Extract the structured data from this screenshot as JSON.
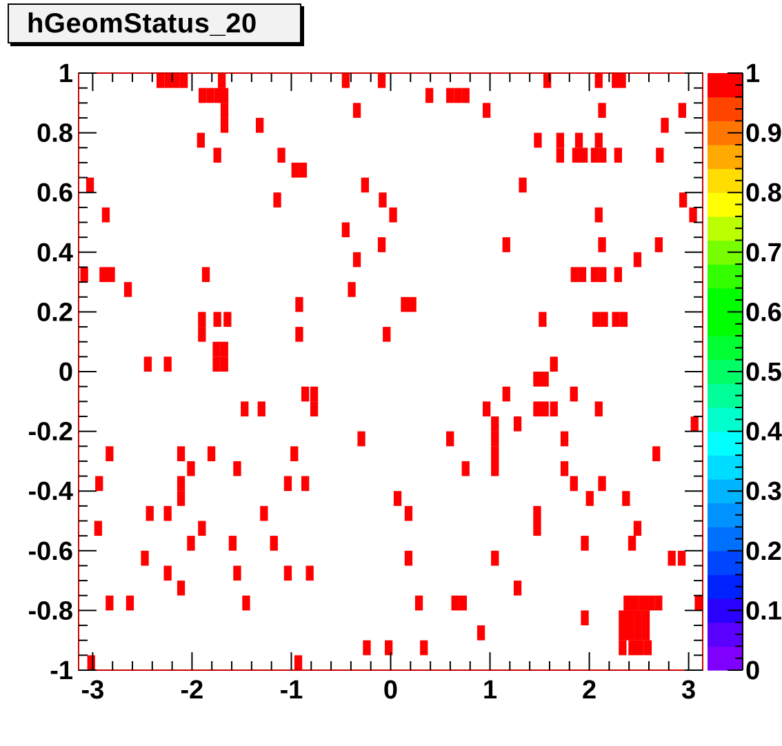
{
  "title": "hGeomStatus_20",
  "chart_data": {
    "type": "heatmap",
    "title": "hGeomStatus_20",
    "xlabel": "",
    "ylabel": "",
    "xlim": [
      -3.1416,
      3.1416
    ],
    "ylim": [
      -1,
      1
    ],
    "zlim": [
      0,
      1
    ],
    "bin_width": [
      0.0785,
      0.05
    ],
    "grid": false,
    "x_tick_labels": [
      "-3",
      "-2",
      "-1",
      "0",
      "1",
      "2",
      "3"
    ],
    "x_tick_values": [
      -3,
      -2,
      -1,
      0,
      1,
      2,
      3
    ],
    "y_tick_labels": [
      "-1",
      "-0.8",
      "-0.6",
      "-0.4",
      "-0.2",
      "0",
      "0.2",
      "0.4",
      "0.6",
      "0.8",
      "1"
    ],
    "y_tick_values": [
      -1,
      -0.8,
      -0.6,
      -0.4,
      -0.2,
      0,
      0.2,
      0.4,
      0.6,
      0.8,
      1
    ],
    "colorbar_tick_labels": [
      "0",
      "0.1",
      "0.2",
      "0.3",
      "0.4",
      "0.5",
      "0.6",
      "0.7",
      "0.8",
      "0.9",
      "1"
    ],
    "colorbar_tick_values": [
      0,
      0.1,
      0.2,
      0.3,
      0.4,
      0.5,
      0.6,
      0.7,
      0.8,
      0.9,
      1
    ],
    "palette": [
      "#7f00ff",
      "#5a00ff",
      "#2a00ff",
      "#0022ff",
      "#0046ff",
      "#0070ff",
      "#0092ff",
      "#00b4ff",
      "#00dcff",
      "#00ffff",
      "#00ffcc",
      "#00ff99",
      "#00ff66",
      "#00ff33",
      "#00ff00",
      "#00ff00",
      "#33ff00",
      "#77ff00",
      "#bbff00",
      "#ffff00",
      "#ffdd00",
      "#ffaa00",
      "#ff7700",
      "#ff4400",
      "#ff0000"
    ],
    "cell_color": "#ff0000",
    "frame_color": "#cc0000",
    "cells": [
      [
        -2.318,
        0.975
      ],
      [
        -2.239,
        0.975
      ],
      [
        -2.161,
        0.975
      ],
      [
        -2.082,
        0.975
      ],
      [
        -1.7,
        0.975
      ],
      [
        -0.452,
        0.975
      ],
      [
        -0.09,
        0.975
      ],
      [
        1.577,
        0.975
      ],
      [
        2.095,
        0.975
      ],
      [
        2.265,
        0.975
      ],
      [
        2.33,
        0.975
      ],
      [
        -1.894,
        0.925
      ],
      [
        -1.816,
        0.925
      ],
      [
        -1.737,
        0.925
      ],
      [
        -1.673,
        0.925
      ],
      [
        0.39,
        0.925
      ],
      [
        0.598,
        0.925
      ],
      [
        0.677,
        0.925
      ],
      [
        0.755,
        0.925
      ],
      [
        -1.673,
        0.875
      ],
      [
        -0.34,
        0.875
      ],
      [
        0.966,
        0.875
      ],
      [
        2.128,
        0.875
      ],
      [
        2.936,
        0.875
      ],
      [
        -1.673,
        0.825
      ],
      [
        -1.318,
        0.825
      ],
      [
        2.76,
        0.825
      ],
      [
        -1.91,
        0.775
      ],
      [
        1.482,
        0.775
      ],
      [
        1.707,
        0.775
      ],
      [
        1.896,
        0.775
      ],
      [
        2.095,
        0.775
      ],
      [
        -1.745,
        0.725
      ],
      [
        -1.1,
        0.725
      ],
      [
        1.707,
        0.725
      ],
      [
        1.867,
        0.725
      ],
      [
        1.945,
        0.725
      ],
      [
        2.055,
        0.725
      ],
      [
        2.133,
        0.725
      ],
      [
        2.29,
        0.725
      ],
      [
        2.71,
        0.725
      ],
      [
        -0.96,
        0.675
      ],
      [
        -0.882,
        0.675
      ],
      [
        -3.027,
        0.625
      ],
      [
        -0.258,
        0.625
      ],
      [
        1.33,
        0.625
      ],
      [
        -1.142,
        0.575
      ],
      [
        -0.08,
        0.575
      ],
      [
        2.945,
        0.575
      ],
      [
        -2.868,
        0.525
      ],
      [
        0.025,
        0.525
      ],
      [
        2.095,
        0.525
      ],
      [
        3.045,
        0.525
      ],
      [
        -0.452,
        0.475
      ],
      [
        -0.09,
        0.425
      ],
      [
        1.165,
        0.425
      ],
      [
        2.128,
        0.425
      ],
      [
        2.7,
        0.425
      ],
      [
        -0.34,
        0.375
      ],
      [
        2.485,
        0.375
      ],
      [
        -3.085,
        0.325
      ],
      [
        -2.893,
        0.325
      ],
      [
        -2.815,
        0.325
      ],
      [
        -1.86,
        0.325
      ],
      [
        1.852,
        0.325
      ],
      [
        1.93,
        0.325
      ],
      [
        2.055,
        0.325
      ],
      [
        2.133,
        0.325
      ],
      [
        2.29,
        0.325
      ],
      [
        -2.645,
        0.275
      ],
      [
        -0.392,
        0.275
      ],
      [
        -0.92,
        0.225
      ],
      [
        0.142,
        0.225
      ],
      [
        0.22,
        0.225
      ],
      [
        -1.9,
        0.175
      ],
      [
        -1.745,
        0.175
      ],
      [
        -1.643,
        0.175
      ],
      [
        1.53,
        0.175
      ],
      [
        2.071,
        0.175
      ],
      [
        2.149,
        0.175
      ],
      [
        2.268,
        0.175
      ],
      [
        2.346,
        0.175
      ],
      [
        -1.9,
        0.125
      ],
      [
        -0.92,
        0.125
      ],
      [
        -0.04,
        0.125
      ],
      [
        -1.753,
        0.075
      ],
      [
        -1.675,
        0.075
      ],
      [
        -2.445,
        0.025
      ],
      [
        -2.245,
        0.025
      ],
      [
        -1.753,
        0.025
      ],
      [
        -1.675,
        0.025
      ],
      [
        1.644,
        0.025
      ],
      [
        1.475,
        -0.025
      ],
      [
        1.553,
        -0.025
      ],
      [
        -0.86,
        -0.075
      ],
      [
        -0.77,
        -0.075
      ],
      [
        1.165,
        -0.075
      ],
      [
        1.845,
        -0.075
      ],
      [
        -1.47,
        -0.125
      ],
      [
        -1.3,
        -0.125
      ],
      [
        -0.77,
        -0.125
      ],
      [
        0.966,
        -0.125
      ],
      [
        1.475,
        -0.125
      ],
      [
        1.553,
        -0.125
      ],
      [
        1.644,
        -0.125
      ],
      [
        2.095,
        -0.125
      ],
      [
        1.05,
        -0.175
      ],
      [
        1.278,
        -0.175
      ],
      [
        3.06,
        -0.175
      ],
      [
        -0.295,
        -0.225
      ],
      [
        0.598,
        -0.225
      ],
      [
        1.05,
        -0.225
      ],
      [
        1.75,
        -0.225
      ],
      [
        -2.83,
        -0.275
      ],
      [
        -2.11,
        -0.275
      ],
      [
        -1.805,
        -0.275
      ],
      [
        -0.97,
        -0.275
      ],
      [
        1.05,
        -0.275
      ],
      [
        2.675,
        -0.275
      ],
      [
        -2.01,
        -0.325
      ],
      [
        -1.545,
        -0.325
      ],
      [
        0.755,
        -0.325
      ],
      [
        1.05,
        -0.325
      ],
      [
        1.75,
        -0.325
      ],
      [
        -2.935,
        -0.375
      ],
      [
        -2.11,
        -0.375
      ],
      [
        -1.035,
        -0.375
      ],
      [
        -0.86,
        -0.375
      ],
      [
        1.845,
        -0.375
      ],
      [
        2.128,
        -0.375
      ],
      [
        -2.11,
        -0.425
      ],
      [
        0.07,
        -0.425
      ],
      [
        2.005,
        -0.425
      ],
      [
        2.37,
        -0.425
      ],
      [
        -2.425,
        -0.475
      ],
      [
        -2.245,
        -0.475
      ],
      [
        -1.275,
        -0.475
      ],
      [
        0.18,
        -0.475
      ],
      [
        1.475,
        -0.475
      ],
      [
        -2.945,
        -0.525
      ],
      [
        -1.9,
        -0.525
      ],
      [
        1.475,
        -0.525
      ],
      [
        2.485,
        -0.525
      ],
      [
        -2.01,
        -0.575
      ],
      [
        -1.59,
        -0.575
      ],
      [
        -1.175,
        -0.575
      ],
      [
        1.955,
        -0.575
      ],
      [
        2.43,
        -0.575
      ],
      [
        -2.475,
        -0.625
      ],
      [
        0.18,
        -0.625
      ],
      [
        1.05,
        -0.625
      ],
      [
        2.83,
        -0.625
      ],
      [
        2.93,
        -0.625
      ],
      [
        -2.245,
        -0.675
      ],
      [
        -1.545,
        -0.675
      ],
      [
        -1.035,
        -0.675
      ],
      [
        -0.815,
        -0.675
      ],
      [
        -2.11,
        -0.725
      ],
      [
        1.278,
        -0.725
      ],
      [
        -2.83,
        -0.775
      ],
      [
        -2.625,
        -0.775
      ],
      [
        -1.455,
        -0.775
      ],
      [
        0.285,
        -0.775
      ],
      [
        0.65,
        -0.775
      ],
      [
        0.728,
        -0.775
      ],
      [
        2.384,
        -0.775
      ],
      [
        2.462,
        -0.775
      ],
      [
        2.54,
        -0.775
      ],
      [
        2.618,
        -0.775
      ],
      [
        2.696,
        -0.775
      ],
      [
        3.1,
        -0.775
      ],
      [
        1.955,
        -0.825
      ],
      [
        2.335,
        -0.825
      ],
      [
        2.413,
        -0.825
      ],
      [
        2.491,
        -0.825
      ],
      [
        2.569,
        -0.825
      ],
      [
        0.91,
        -0.875
      ],
      [
        2.335,
        -0.875
      ],
      [
        2.413,
        -0.875
      ],
      [
        2.491,
        -0.875
      ],
      [
        2.569,
        -0.875
      ],
      [
        -0.24,
        -0.925
      ],
      [
        -0.02,
        -0.925
      ],
      [
        0.335,
        -0.925
      ],
      [
        2.335,
        -0.925
      ],
      [
        2.433,
        -0.925
      ],
      [
        2.511,
        -0.925
      ],
      [
        2.589,
        -0.925
      ],
      [
        -3.015,
        -0.975
      ],
      [
        -0.93,
        -0.975
      ]
    ]
  }
}
